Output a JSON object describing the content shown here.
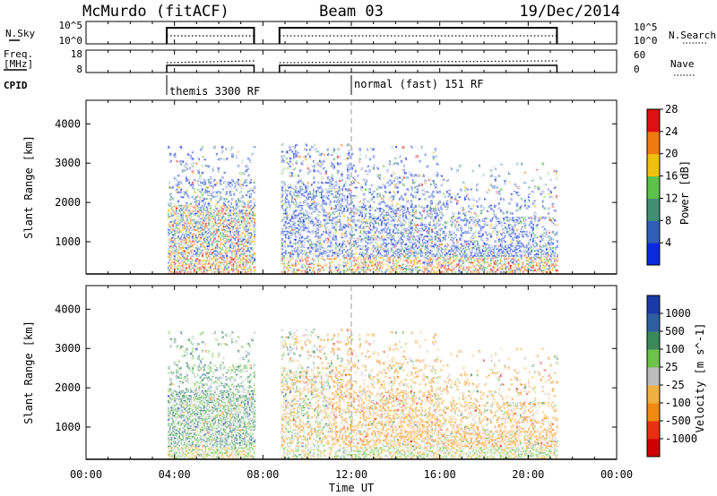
{
  "chart_data": {
    "type": "heatmap",
    "header": {
      "station_title": "McMurdo (fitACF)",
      "beam_title": "Beam 03",
      "date_title": "19/Dec/2014"
    },
    "time_axis": {
      "title": "Time UT",
      "range_hours": [
        0,
        24
      ],
      "ticks": [
        "00:00",
        "04:00",
        "08:00",
        "12:00",
        "16:00",
        "20:00",
        "00:00"
      ]
    },
    "noise_panel": {
      "left_label": "N.Sky",
      "right_label": "N.Search",
      "left_ticks": [
        "10^5",
        "10^0"
      ],
      "right_ticks": [
        "10^5",
        "10^0"
      ]
    },
    "freq_panel": {
      "left_label_line1": "Freq.",
      "left_label_line2": "[MHz]",
      "right_label": "Nave",
      "left_ticks": [
        "18",
        "8"
      ],
      "right_ticks": [
        "60",
        "0"
      ]
    },
    "cpid": {
      "label": "CPID",
      "segments": [
        {
          "text": "themis 3300 RF",
          "start_hour": 3.65
        },
        {
          "text": "normal (fast) 151 RF",
          "start_hour": 12.0
        }
      ]
    },
    "data_intervals_hours": [
      [
        3.65,
        7.6
      ],
      [
        8.75,
        21.3
      ]
    ],
    "power_panel": {
      "ylabel": "Slant Range [km]",
      "yticks": [
        1000,
        2000,
        3000,
        4000
      ],
      "ylim": [
        180,
        4600
      ],
      "colorbar": {
        "label": "Power [dB]",
        "ticks": [
          "4",
          "8",
          "12",
          "16",
          "20",
          "24",
          "28"
        ],
        "colors": [
          "#0a2ae0",
          "#2f5fb8",
          "#3f8f73",
          "#5cc24a",
          "#f0c010",
          "#f07a10",
          "#e01010"
        ]
      }
    },
    "velocity_panel": {
      "ylabel": "Slant Range [km]",
      "yticks": [
        1000,
        2000,
        3000,
        4000
      ],
      "ylim": [
        180,
        4600
      ],
      "colorbar": {
        "label": "Velocity [m s^-1]",
        "ticks": [
          "1000",
          "500",
          "100",
          "25",
          "-25",
          "-100",
          "-500",
          "-1000"
        ],
        "colors": [
          "#1a3aa8",
          "#2d5fa0",
          "#3a8a5c",
          "#6cc44a",
          "#bdbdbd",
          "#f0b040",
          "#f08a10",
          "#e83010",
          "#d00000"
        ]
      }
    }
  }
}
